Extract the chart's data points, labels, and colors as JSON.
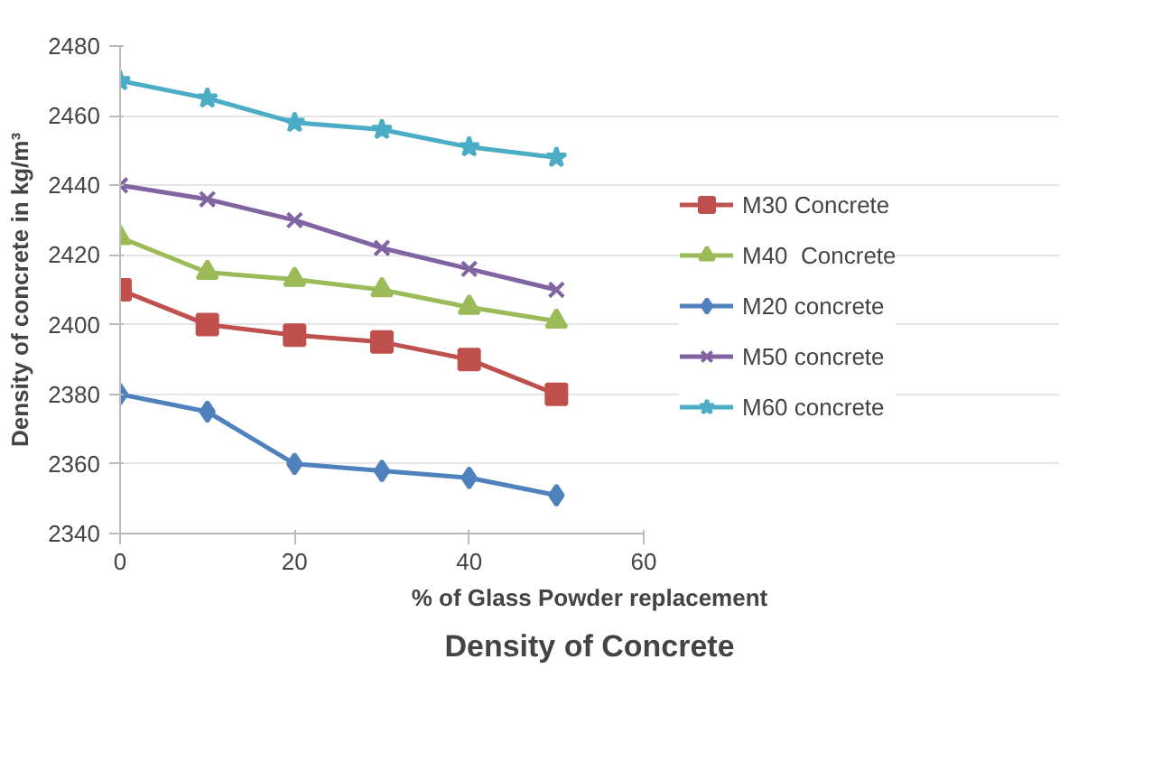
{
  "chart_data": {
    "type": "line",
    "title": "Density of Concrete",
    "xlabel": "% of Glass Powder replacement",
    "ylabel": "Density of concrete in kg/m³",
    "x": [
      0,
      10,
      20,
      30,
      40,
      50
    ],
    "xlim": [
      0,
      60
    ],
    "xticks": [
      0,
      20,
      40,
      60
    ],
    "ylim": [
      2340,
      2480
    ],
    "yticks": [
      2340,
      2360,
      2380,
      2400,
      2420,
      2440,
      2460,
      2480
    ],
    "grid": "y",
    "legend": "right",
    "series": [
      {
        "name": "M30 Concrete",
        "color": "#c0504d",
        "marker": "square",
        "values": [
          2410,
          2400,
          2397,
          2395,
          2390,
          2380
        ]
      },
      {
        "name": "M40  Concrete",
        "color": "#9bbb59",
        "marker": "triangle",
        "values": [
          2425,
          2415,
          2413,
          2410,
          2405,
          2401
        ]
      },
      {
        "name": "M20 concrete",
        "color": "#4f81bd",
        "marker": "diamond",
        "values": [
          2380,
          2375,
          2360,
          2358,
          2356,
          2351
        ]
      },
      {
        "name": "M50 concrete",
        "color": "#8064a2",
        "marker": "cross",
        "values": [
          2440,
          2436,
          2430,
          2422,
          2416,
          2410
        ]
      },
      {
        "name": "M60 concrete",
        "color": "#4bacc6",
        "marker": "star",
        "values": [
          2470,
          2465,
          2458,
          2456,
          2451,
          2448
        ]
      }
    ]
  }
}
